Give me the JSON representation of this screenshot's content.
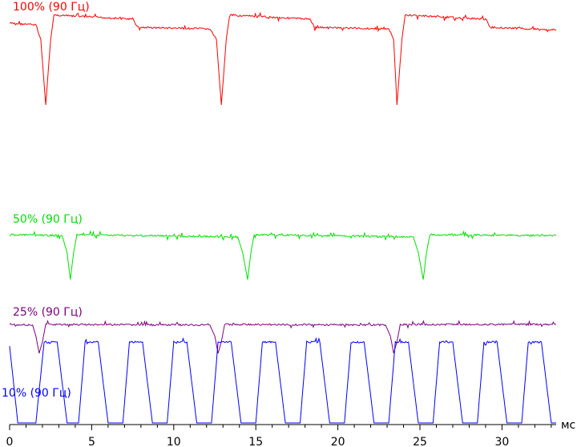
{
  "chart_data": {
    "type": "line",
    "title": "",
    "xlabel": "мс",
    "ylabel": "",
    "xlim": [
      0,
      33.3
    ],
    "x_ticks": [
      "0",
      "5",
      "10",
      "15",
      "20",
      "25",
      "30"
    ],
    "grid": false,
    "series": [
      {
        "name": "100% (90 Гц)",
        "color": "#ff0000",
        "values": [
          [
            0,
            1.0
          ],
          [
            1.6,
            0.98
          ],
          [
            1.9,
            0.8
          ],
          [
            2.2,
            0.0
          ],
          [
            2.5,
            0.8
          ],
          [
            2.7,
            1.1
          ],
          [
            7.5,
            1.05
          ],
          [
            7.8,
            0.95
          ],
          [
            12.2,
            0.93
          ],
          [
            12.6,
            0.8
          ],
          [
            12.9,
            0.0
          ],
          [
            13.2,
            0.8
          ],
          [
            13.4,
            1.1
          ],
          [
            18.3,
            1.05
          ],
          [
            18.6,
            0.95
          ],
          [
            23.1,
            0.93
          ],
          [
            23.4,
            0.8
          ],
          [
            23.6,
            0.0
          ],
          [
            23.9,
            0.8
          ],
          [
            24.1,
            1.1
          ],
          [
            29.0,
            1.05
          ],
          [
            29.3,
            0.95
          ],
          [
            33.3,
            0.92
          ]
        ]
      },
      {
        "name": "50% (90 Гц)",
        "color": "#00e000",
        "values": [
          [
            0,
            1.0
          ],
          [
            3.2,
            0.98
          ],
          [
            3.5,
            0.6
          ],
          [
            3.7,
            0.0
          ],
          [
            3.9,
            0.6
          ],
          [
            4.1,
            1.0
          ],
          [
            13.9,
            0.95
          ],
          [
            14.2,
            0.6
          ],
          [
            14.5,
            0.0
          ],
          [
            14.7,
            0.6
          ],
          [
            14.9,
            1.0
          ],
          [
            24.6,
            0.95
          ],
          [
            24.9,
            0.6
          ],
          [
            25.2,
            0.0
          ],
          [
            25.4,
            0.6
          ],
          [
            25.6,
            1.0
          ],
          [
            33.3,
            0.98
          ]
        ]
      },
      {
        "name": "25% (90 Гц)",
        "color": "#800080",
        "values": [
          [
            0,
            1.0
          ],
          [
            1.4,
            0.98
          ],
          [
            1.6,
            0.6
          ],
          [
            1.8,
            0.0
          ],
          [
            2.0,
            0.4
          ],
          [
            2.2,
            1.0
          ],
          [
            12.2,
            0.98
          ],
          [
            12.5,
            0.6
          ],
          [
            12.7,
            0.0
          ],
          [
            12.9,
            0.4
          ],
          [
            13.1,
            1.0
          ],
          [
            22.9,
            0.98
          ],
          [
            23.2,
            0.6
          ],
          [
            23.4,
            0.0
          ],
          [
            23.6,
            0.4
          ],
          [
            23.8,
            1.0
          ],
          [
            33.3,
            1.0
          ]
        ]
      },
      {
        "name": "10% (90 Гц)",
        "color": "#0000ff",
        "values": [
          [
            0,
            0.95
          ],
          [
            0.5,
            0.0
          ],
          [
            1.6,
            0.0
          ],
          [
            2.1,
            1.0
          ],
          [
            2.9,
            1.0
          ],
          [
            3.5,
            0.0
          ],
          [
            4.2,
            0.0
          ],
          [
            4.6,
            1.0
          ],
          [
            5.4,
            1.0
          ],
          [
            6.0,
            0.0
          ],
          [
            6.9,
            0.0
          ],
          [
            7.3,
            1.0
          ],
          [
            8.1,
            1.0
          ],
          [
            8.7,
            0.0
          ],
          [
            9.6,
            0.0
          ],
          [
            10.0,
            1.0
          ],
          [
            10.8,
            1.0
          ],
          [
            11.4,
            0.0
          ],
          [
            12.3,
            0.0
          ],
          [
            12.7,
            1.0
          ],
          [
            13.5,
            1.0
          ],
          [
            14.1,
            0.0
          ],
          [
            15.0,
            0.0
          ],
          [
            15.4,
            1.0
          ],
          [
            16.2,
            1.0
          ],
          [
            16.8,
            0.0
          ],
          [
            17.7,
            0.0
          ],
          [
            18.1,
            1.0
          ],
          [
            18.9,
            1.0
          ],
          [
            19.5,
            0.0
          ],
          [
            20.4,
            0.0
          ],
          [
            20.8,
            1.0
          ],
          [
            21.6,
            1.0
          ],
          [
            22.2,
            0.0
          ],
          [
            23.1,
            0.0
          ],
          [
            23.5,
            1.0
          ],
          [
            24.3,
            1.0
          ],
          [
            24.9,
            0.0
          ],
          [
            25.8,
            0.0
          ],
          [
            26.2,
            1.0
          ],
          [
            27.0,
            1.0
          ],
          [
            27.6,
            0.0
          ],
          [
            28.5,
            0.0
          ],
          [
            28.9,
            1.0
          ],
          [
            29.7,
            1.0
          ],
          [
            30.3,
            0.0
          ],
          [
            31.2,
            0.0
          ],
          [
            31.6,
            1.0
          ],
          [
            32.4,
            1.0
          ],
          [
            33.0,
            0.0
          ],
          [
            33.3,
            0.0
          ]
        ]
      }
    ]
  }
}
